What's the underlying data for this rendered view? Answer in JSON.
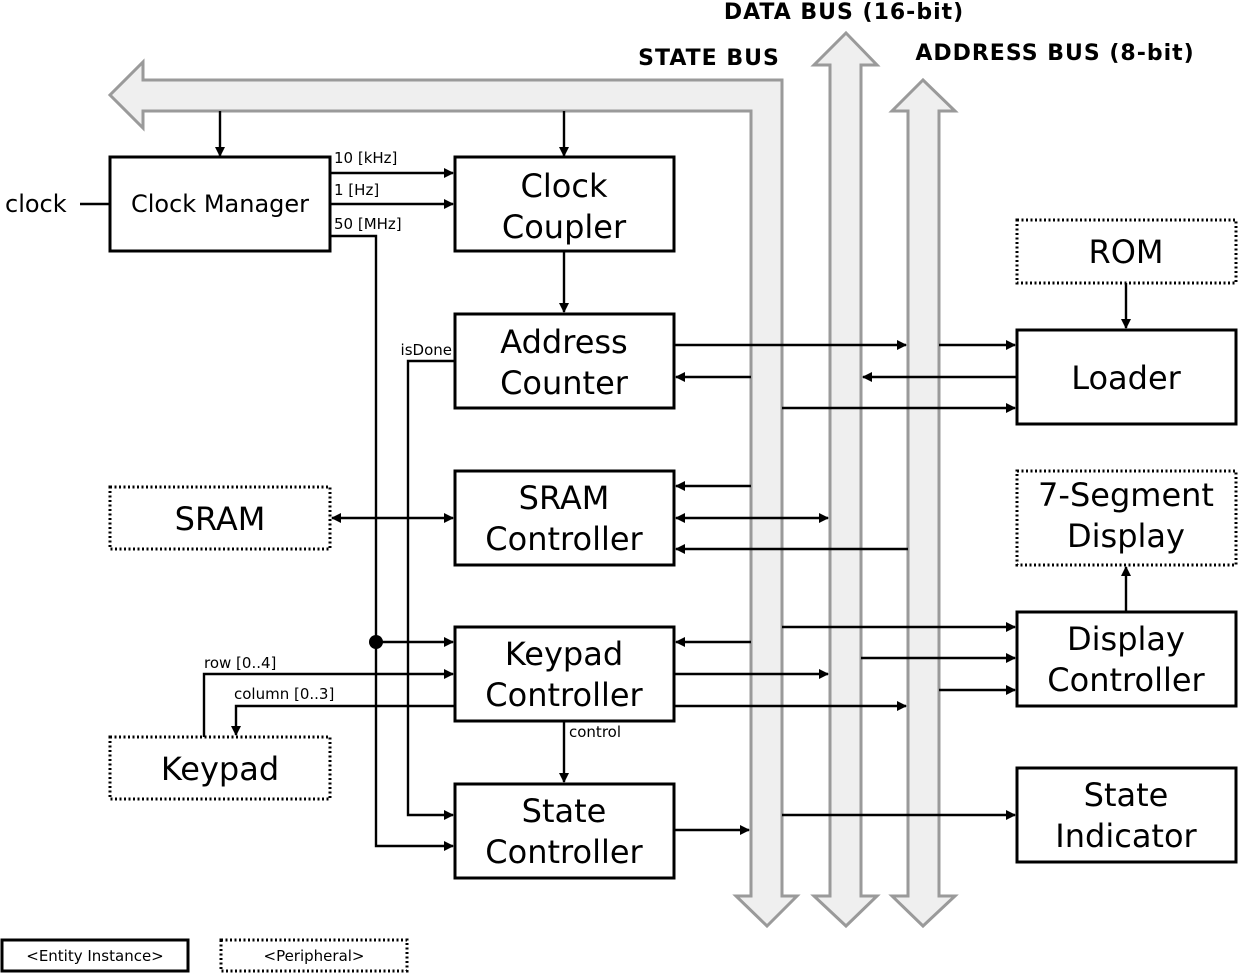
{
  "buses": {
    "data": "DATA BUS (16-bit)",
    "state": "STATE BUS",
    "address": "ADDRESS BUS (8-bit)"
  },
  "inputs": {
    "clock": "clock"
  },
  "blocks": {
    "clock_manager": "Clock Manager",
    "clock_coupler": [
      "Clock",
      "Coupler"
    ],
    "address_counter": [
      "Address",
      "Counter"
    ],
    "sram_controller": [
      "SRAM",
      "Controller"
    ],
    "keypad_controller": [
      "Keypad",
      "Controller"
    ],
    "state_controller": [
      "State",
      "Controller"
    ],
    "loader": "Loader",
    "display_controller": [
      "Display",
      "Controller"
    ],
    "state_indicator": [
      "State",
      "Indicator"
    ]
  },
  "peripherals": {
    "rom": "ROM",
    "sram": "SRAM",
    "keypad": "Keypad",
    "seven_segment": [
      "7-Segment",
      "Display"
    ]
  },
  "signals": {
    "f_10khz": "10 [kHz]",
    "f_1hz": "1 [Hz]",
    "f_50mhz": "50 [MHz]",
    "is_done": "isDone",
    "row": "row [0..4]",
    "column": "column [0..3]",
    "control": "control"
  },
  "legend": {
    "entity": "<Entity Instance>",
    "peripheral": "<Peripheral>"
  }
}
